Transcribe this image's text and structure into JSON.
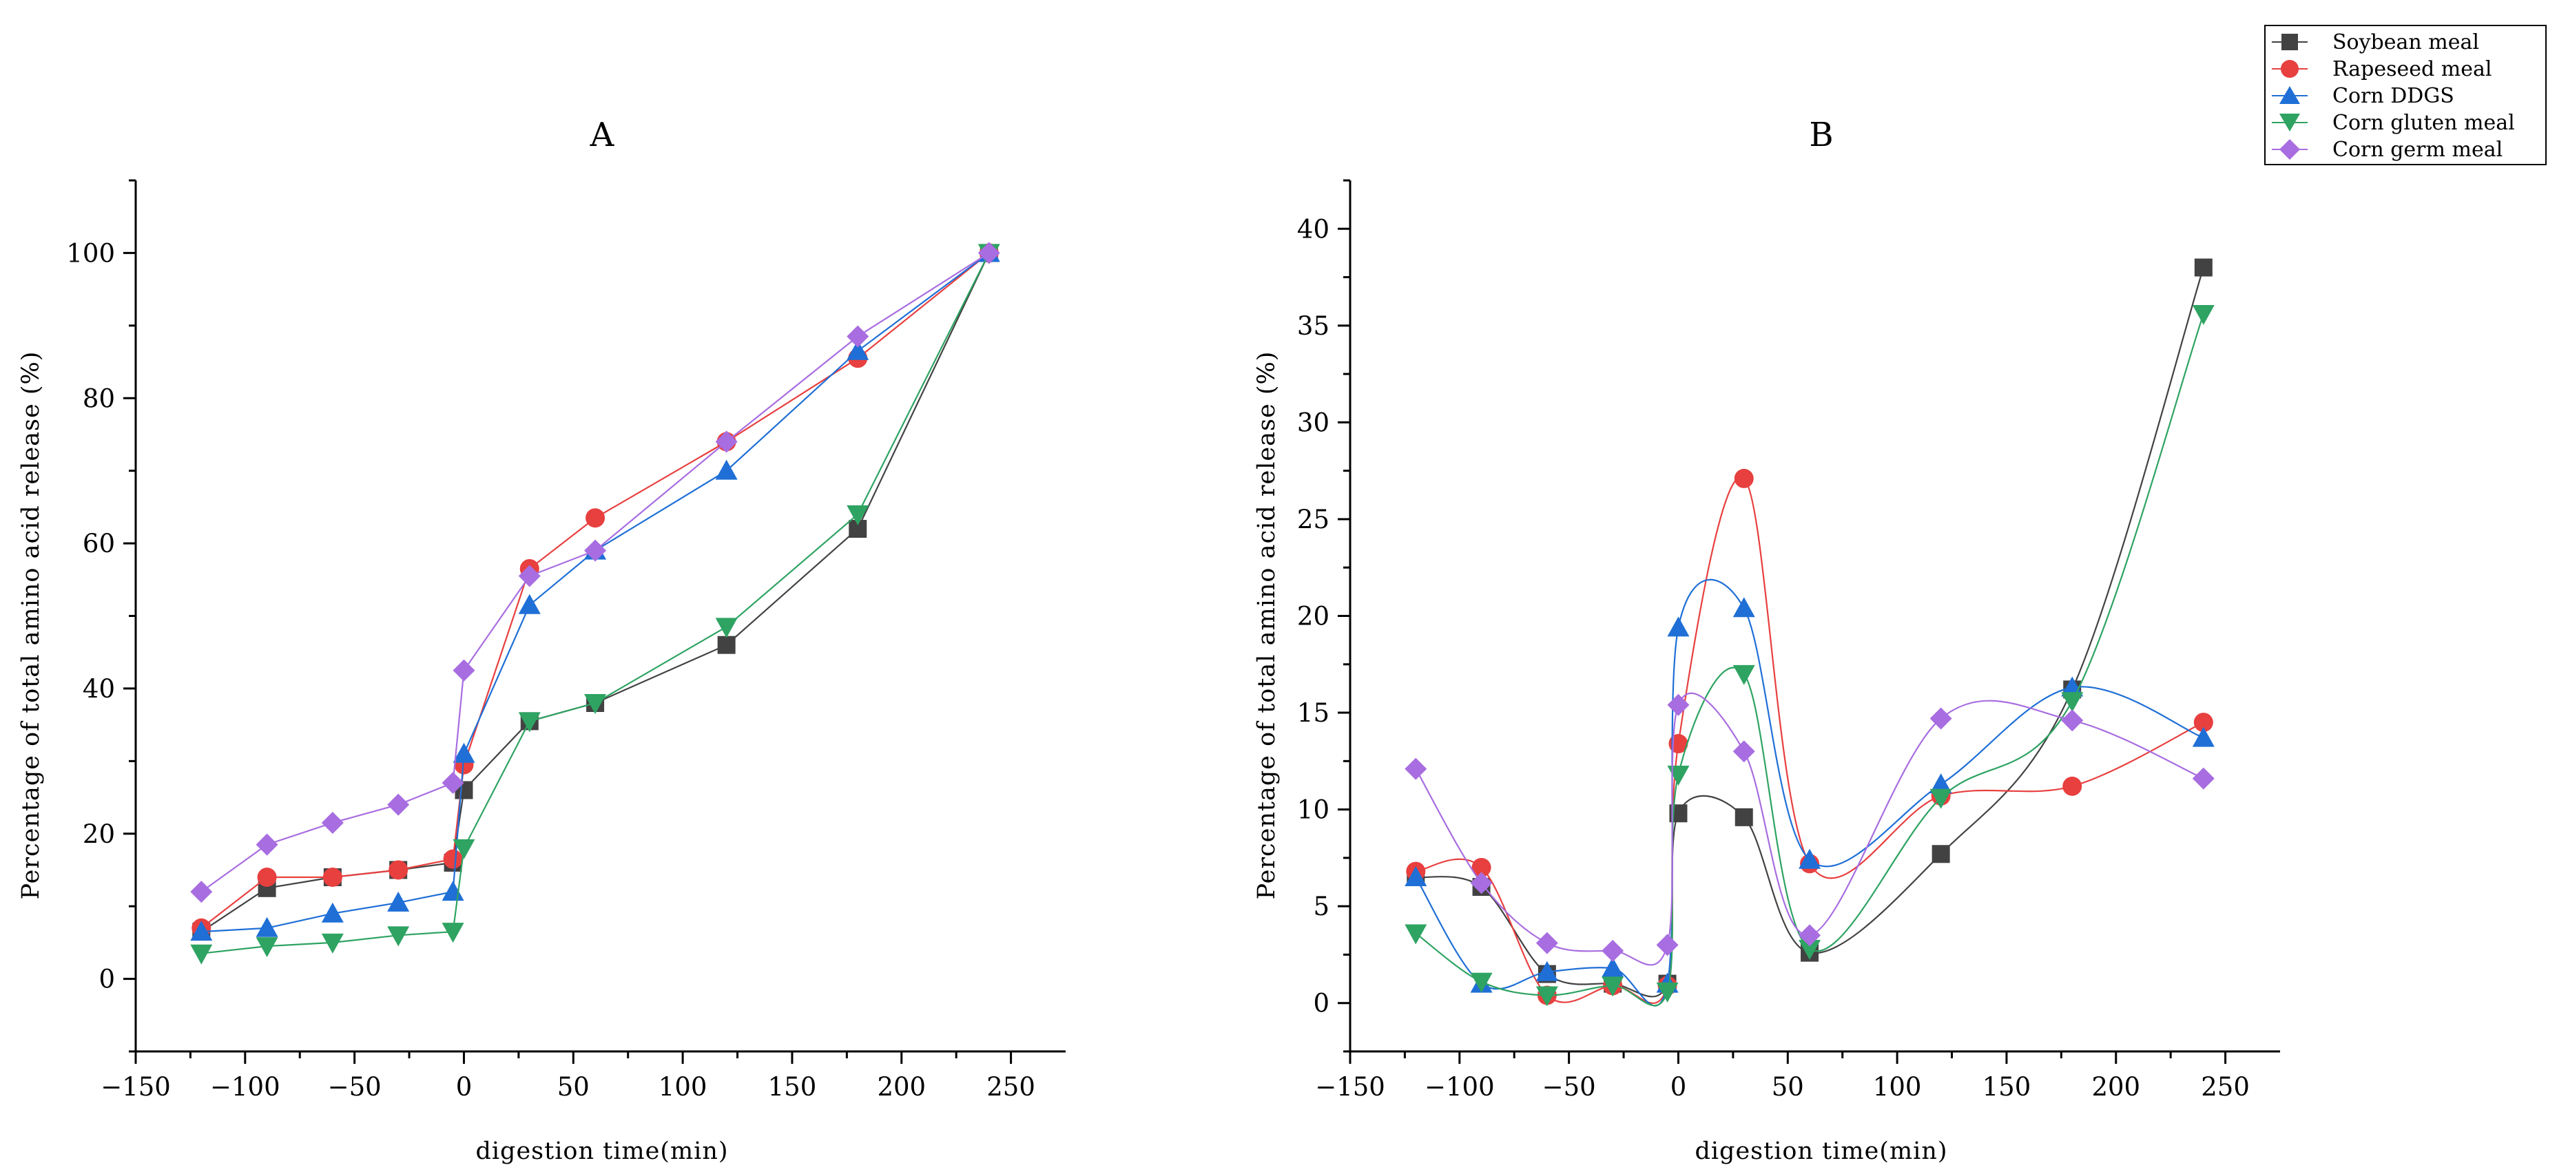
{
  "legend": [
    {
      "label": "Soybean meal",
      "color": "#424242",
      "marker": "square"
    },
    {
      "label": "Rapeseed meal",
      "color": "#e83f3f",
      "marker": "circle"
    },
    {
      "label": "Corn DDGS",
      "color": "#1f6fd6",
      "marker": "triangle-up"
    },
    {
      "label": "Corn gluten meal",
      "color": "#2ea362",
      "marker": "triangle-down"
    },
    {
      "label": "Corn germ meal",
      "color": "#a86de0",
      "marker": "diamond"
    }
  ],
  "chart_data": [
    {
      "type": "line",
      "title": "A",
      "xlabel": "digestion time(min)",
      "ylabel": "Percentage of total amino acid release (%)",
      "xlim": [
        -150,
        275
      ],
      "ylim": [
        -10,
        110
      ],
      "xticks": [
        -150,
        -100,
        -50,
        0,
        50,
        100,
        150,
        200,
        250
      ],
      "xtick_labels": [
        "−150",
        "−100",
        "−50",
        "0",
        "50",
        "100",
        "150",
        "200",
        "250"
      ],
      "yticks": [
        0,
        20,
        40,
        60,
        80,
        100
      ],
      "ytick_labels": [
        "0",
        "20",
        "40",
        "60",
        "80",
        "100"
      ],
      "curve": "linear",
      "x": [
        -120,
        -90,
        -60,
        -30,
        -5,
        0,
        30,
        60,
        120,
        180,
        240
      ],
      "series": [
        {
          "name": "Soybean meal",
          "values": [
            6.5,
            12.5,
            14,
            15,
            16,
            26,
            35.5,
            38,
            46,
            62,
            100
          ]
        },
        {
          "name": "Rapeseed meal",
          "values": [
            7,
            14,
            14,
            15,
            16.5,
            29.5,
            56.5,
            63.5,
            74,
            85.5,
            100
          ]
        },
        {
          "name": "Corn DDGS",
          "values": [
            6.5,
            7,
            9,
            10.5,
            12,
            31,
            51.5,
            59,
            70,
            86.5,
            100
          ]
        },
        {
          "name": "Corn gluten meal",
          "values": [
            3.5,
            4.5,
            5,
            6,
            6.5,
            18,
            35.5,
            38,
            48.5,
            64,
            100
          ]
        },
        {
          "name": "Corn germ meal",
          "values": [
            12,
            18.5,
            21.5,
            24,
            27,
            42.5,
            55.5,
            59,
            74,
            88.5,
            100
          ]
        }
      ]
    },
    {
      "type": "line",
      "title": "B",
      "xlabel": "digestion time(min)",
      "ylabel": "Percentage of total amino acid release (%)",
      "xlim": [
        -150,
        275
      ],
      "ylim": [
        -2.5,
        42.5
      ],
      "xticks": [
        -150,
        -100,
        -50,
        0,
        50,
        100,
        150,
        200,
        250
      ],
      "xtick_labels": [
        "−150",
        "−100",
        "−50",
        "0",
        "50",
        "100",
        "150",
        "200",
        "250"
      ],
      "yticks": [
        0,
        5,
        10,
        15,
        20,
        25,
        30,
        35,
        40
      ],
      "ytick_labels": [
        "0",
        "5",
        "10",
        "15",
        "20",
        "25",
        "30",
        "35",
        "40"
      ],
      "curve": "smooth",
      "x": [
        -120,
        -90,
        -60,
        -30,
        -5,
        0,
        30,
        60,
        120,
        180,
        240
      ],
      "series": [
        {
          "name": "Soybean meal",
          "values": [
            6.5,
            6,
            1.5,
            1,
            1,
            9.8,
            9.6,
            2.6,
            7.7,
            16.2,
            38
          ]
        },
        {
          "name": "Rapeseed meal",
          "values": [
            6.8,
            7,
            0.4,
            0.9,
            0.9,
            13.4,
            27.1,
            7.2,
            10.7,
            11.2,
            14.5
          ]
        },
        {
          "name": "Corn DDGS",
          "values": [
            6.5,
            1,
            1.6,
            1.8,
            1,
            19.4,
            20.4,
            7.4,
            11.3,
            16.3,
            13.7
          ]
        },
        {
          "name": "Corn gluten meal",
          "values": [
            3.6,
            1.1,
            0.4,
            0.9,
            0.6,
            11.8,
            17,
            2.8,
            10.6,
            15.6,
            35.6
          ]
        },
        {
          "name": "Corn germ meal",
          "values": [
            12.1,
            6.2,
            3.1,
            2.7,
            3,
            15.4,
            13,
            3.5,
            14.7,
            14.6,
            11.6
          ]
        }
      ]
    }
  ]
}
